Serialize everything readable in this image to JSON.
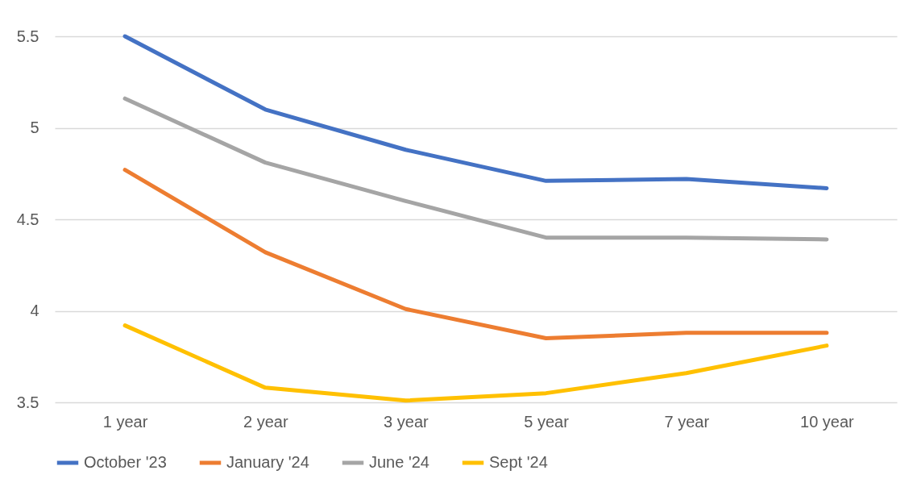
{
  "chart_data": {
    "type": "line",
    "categories": [
      "1 year",
      "2 year",
      "3 year",
      "5 year",
      "7 year",
      "10 year"
    ],
    "series": [
      {
        "name": "October '23",
        "color": "#4472c4",
        "values": [
          5.5,
          5.1,
          4.88,
          4.71,
          4.72,
          4.67
        ]
      },
      {
        "name": "January '24",
        "color": "#ed7d31",
        "values": [
          4.77,
          4.32,
          4.01,
          3.85,
          3.88,
          3.88
        ]
      },
      {
        "name": "June '24",
        "color": "#a5a5a5",
        "values": [
          5.16,
          4.81,
          4.6,
          4.4,
          4.4,
          4.39
        ]
      },
      {
        "name": "Sept '24",
        "color": "#ffc000",
        "values": [
          3.92,
          3.58,
          3.51,
          3.55,
          3.66,
          3.81
        ]
      }
    ],
    "ylim": [
      3.5,
      5.5
    ],
    "yticks": [
      3.5,
      4,
      4.5,
      5,
      5.5
    ],
    "grid": "y",
    "legend": "bottom",
    "line_style": "solid",
    "marker": "none"
  }
}
